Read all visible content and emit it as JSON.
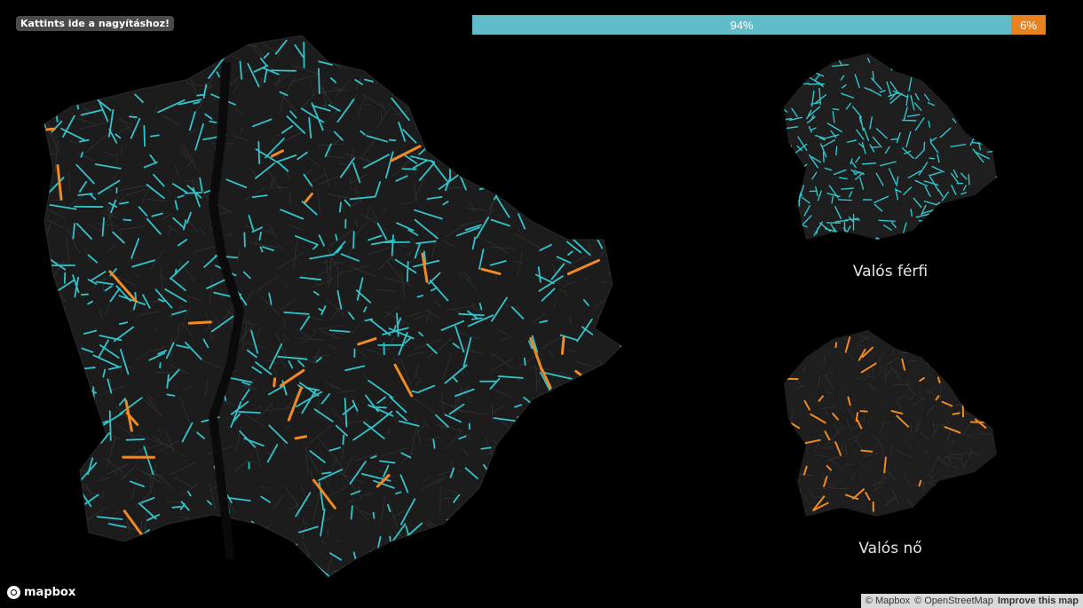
{
  "zoom_hint": "Kattints ide a nagyításhoz!",
  "ratio": {
    "male_percent": 94,
    "female_percent": 6,
    "male_label": "94%",
    "female_label": "6%",
    "male_color": "#5fbcc8",
    "female_color": "#e8821e"
  },
  "mini_maps": {
    "male_label": "Valós férfi",
    "female_label": "Valós nő"
  },
  "brand": {
    "logo_text": "mapbox"
  },
  "attribution": {
    "mapbox": "© Mapbox",
    "osm": "© OpenStreetMap",
    "improve": "Improve this map"
  },
  "colors": {
    "background": "#000000",
    "city_fill": "#1e1e1e",
    "street_color": "#3a3a3a",
    "male_street": "#33c4cc",
    "female_street": "#f08a24"
  }
}
